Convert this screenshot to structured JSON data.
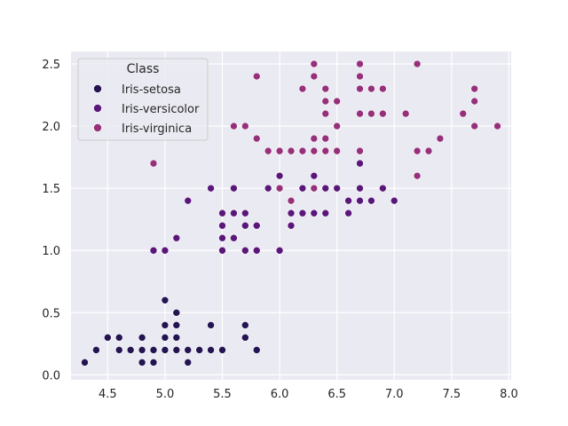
{
  "chart_data": {
    "type": "scatter",
    "xlim": [
      4.18,
      8.02
    ],
    "ylim": [
      -0.04,
      2.6
    ],
    "x_ticks": [
      "4.5",
      "5.0",
      "5.5",
      "6.0",
      "6.5",
      "7.0",
      "7.5",
      "8.0"
    ],
    "y_ticks": [
      "0.0",
      "0.5",
      "1.0",
      "1.5",
      "2.0",
      "2.5"
    ],
    "grid": true,
    "legend_position": "upper-left",
    "legend": {
      "title": "Class",
      "items": [
        "Iris-setosa",
        "Iris-versicolor",
        "Iris-virginica"
      ]
    },
    "series": [
      {
        "name": "Iris-setosa",
        "color": "#241452",
        "points": [
          [
            5.1,
            0.2
          ],
          [
            4.9,
            0.2
          ],
          [
            4.7,
            0.2
          ],
          [
            4.6,
            0.2
          ],
          [
            5.0,
            0.2
          ],
          [
            5.4,
            0.4
          ],
          [
            4.6,
            0.3
          ],
          [
            5.0,
            0.2
          ],
          [
            4.4,
            0.2
          ],
          [
            4.9,
            0.1
          ],
          [
            5.4,
            0.2
          ],
          [
            4.8,
            0.2
          ],
          [
            4.8,
            0.1
          ],
          [
            4.3,
            0.1
          ],
          [
            5.8,
            0.2
          ],
          [
            5.7,
            0.4
          ],
          [
            5.4,
            0.4
          ],
          [
            5.1,
            0.3
          ],
          [
            5.7,
            0.3
          ],
          [
            5.1,
            0.3
          ],
          [
            5.4,
            0.2
          ],
          [
            5.1,
            0.4
          ],
          [
            4.6,
            0.2
          ],
          [
            5.1,
            0.5
          ],
          [
            4.8,
            0.2
          ],
          [
            5.0,
            0.2
          ],
          [
            5.0,
            0.4
          ],
          [
            5.2,
            0.2
          ],
          [
            5.2,
            0.2
          ],
          [
            4.7,
            0.2
          ],
          [
            4.8,
            0.2
          ],
          [
            5.4,
            0.4
          ],
          [
            5.2,
            0.1
          ],
          [
            5.5,
            0.2
          ],
          [
            4.9,
            0.1
          ],
          [
            5.0,
            0.2
          ],
          [
            5.5,
            0.2
          ],
          [
            4.9,
            0.1
          ],
          [
            4.4,
            0.2
          ],
          [
            5.1,
            0.2
          ],
          [
            5.0,
            0.3
          ],
          [
            4.5,
            0.3
          ],
          [
            4.4,
            0.2
          ],
          [
            5.0,
            0.6
          ],
          [
            5.1,
            0.4
          ],
          [
            4.8,
            0.3
          ],
          [
            5.1,
            0.2
          ],
          [
            4.6,
            0.2
          ],
          [
            5.3,
            0.2
          ],
          [
            5.0,
            0.2
          ]
        ]
      },
      {
        "name": "Iris-versicolor",
        "color": "#5a177a",
        "points": [
          [
            7.0,
            1.4
          ],
          [
            6.4,
            1.5
          ],
          [
            6.9,
            1.5
          ],
          [
            5.5,
            1.3
          ],
          [
            6.5,
            1.5
          ],
          [
            5.7,
            1.3
          ],
          [
            6.3,
            1.6
          ],
          [
            4.9,
            1.0
          ],
          [
            6.6,
            1.3
          ],
          [
            5.2,
            1.4
          ],
          [
            5.0,
            1.0
          ],
          [
            5.9,
            1.5
          ],
          [
            6.0,
            1.0
          ],
          [
            6.1,
            1.4
          ],
          [
            5.6,
            1.3
          ],
          [
            6.7,
            1.4
          ],
          [
            5.6,
            1.5
          ],
          [
            5.8,
            1.0
          ],
          [
            6.2,
            1.5
          ],
          [
            5.6,
            1.1
          ],
          [
            5.9,
            1.8
          ],
          [
            6.1,
            1.3
          ],
          [
            6.3,
            1.5
          ],
          [
            6.1,
            1.2
          ],
          [
            6.4,
            1.3
          ],
          [
            6.6,
            1.4
          ],
          [
            6.8,
            1.4
          ],
          [
            6.7,
            1.7
          ],
          [
            6.0,
            1.5
          ],
          [
            5.7,
            1.0
          ],
          [
            5.5,
            1.1
          ],
          [
            5.5,
            1.0
          ],
          [
            5.8,
            1.2
          ],
          [
            6.0,
            1.6
          ],
          [
            5.4,
            1.5
          ],
          [
            6.0,
            1.6
          ],
          [
            6.7,
            1.5
          ],
          [
            6.3,
            1.3
          ],
          [
            5.6,
            1.3
          ],
          [
            5.5,
            1.3
          ],
          [
            5.5,
            1.2
          ],
          [
            6.1,
            1.4
          ],
          [
            5.8,
            1.2
          ],
          [
            5.0,
            1.0
          ],
          [
            5.6,
            1.3
          ],
          [
            5.7,
            1.2
          ],
          [
            5.7,
            1.3
          ],
          [
            6.2,
            1.3
          ],
          [
            5.1,
            1.1
          ],
          [
            5.7,
            1.3
          ]
        ]
      },
      {
        "name": "Iris-virginica",
        "color": "#97307a",
        "points": [
          [
            6.3,
            2.5
          ],
          [
            5.8,
            1.9
          ],
          [
            7.1,
            2.1
          ],
          [
            6.3,
            1.8
          ],
          [
            6.5,
            2.2
          ],
          [
            7.6,
            2.1
          ],
          [
            4.9,
            1.7
          ],
          [
            7.3,
            1.8
          ],
          [
            6.7,
            1.8
          ],
          [
            7.2,
            2.5
          ],
          [
            6.5,
            2.0
          ],
          [
            6.4,
            1.9
          ],
          [
            6.8,
            2.1
          ],
          [
            5.7,
            2.0
          ],
          [
            5.8,
            2.4
          ],
          [
            6.4,
            2.3
          ],
          [
            6.5,
            1.8
          ],
          [
            7.7,
            2.2
          ],
          [
            7.7,
            2.3
          ],
          [
            6.0,
            1.5
          ],
          [
            6.9,
            2.3
          ],
          [
            5.6,
            2.0
          ],
          [
            7.7,
            2.0
          ],
          [
            6.3,
            1.8
          ],
          [
            6.7,
            2.1
          ],
          [
            7.2,
            1.8
          ],
          [
            6.2,
            1.8
          ],
          [
            6.1,
            1.8
          ],
          [
            6.4,
            2.1
          ],
          [
            7.2,
            1.6
          ],
          [
            7.4,
            1.9
          ],
          [
            7.9,
            2.0
          ],
          [
            6.4,
            2.2
          ],
          [
            6.3,
            1.5
          ],
          [
            6.1,
            1.4
          ],
          [
            7.7,
            2.3
          ],
          [
            6.3,
            2.4
          ],
          [
            6.4,
            1.8
          ],
          [
            6.0,
            1.8
          ],
          [
            6.9,
            2.1
          ],
          [
            6.7,
            2.4
          ],
          [
            6.9,
            2.3
          ],
          [
            5.8,
            1.9
          ],
          [
            6.8,
            2.3
          ],
          [
            6.7,
            2.5
          ],
          [
            6.7,
            2.3
          ],
          [
            6.3,
            1.9
          ],
          [
            6.5,
            2.0
          ],
          [
            6.2,
            2.3
          ],
          [
            5.9,
            1.8
          ]
        ]
      }
    ]
  }
}
